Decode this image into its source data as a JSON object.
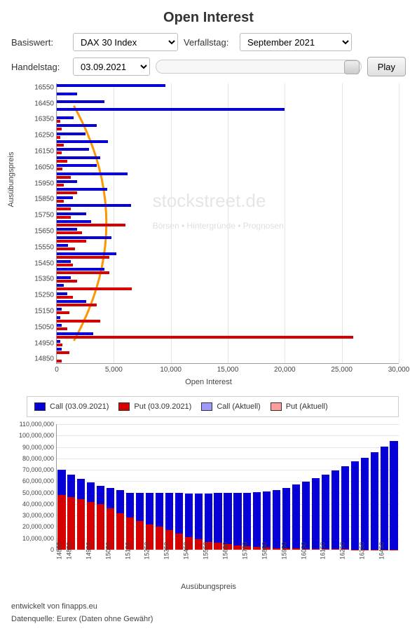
{
  "title": "Open Interest",
  "controls": {
    "basiswert_label": "Basiswert:",
    "basiswert_value": "DAX 30 Index",
    "verfallstag_label": "Verfallstag:",
    "verfallstag_value": "September 2021",
    "handelstag_label": "Handelstag:",
    "handelstag_value": "03.09.2021",
    "play_label": "Play"
  },
  "watermark": {
    "main": "stockstreet.de",
    "sub": "Börsen • Hintergründe • Prognosen"
  },
  "colors": {
    "call": "#0600d6",
    "put": "#d60000",
    "call_aktuell": "#9d99ff",
    "put_aktuell": "#ff9d9d",
    "arc": "#ff9500",
    "grid": "#e5e5e5"
  },
  "hchart": {
    "y_axis_title": "Ausübungspreis",
    "x_axis_title": "Open Interest",
    "x_max": 30000,
    "x_ticks": [
      0,
      5000,
      10000,
      15000,
      20000,
      25000,
      30000
    ],
    "x_tick_labels": [
      "0",
      "5,000",
      "10,000",
      "15,000",
      "20,000",
      "25,000",
      "30,000"
    ],
    "y_tick_step": 100,
    "rows": [
      {
        "strike": 16550,
        "call": 9500,
        "put": 0
      },
      {
        "strike": 16500,
        "call": 1800,
        "put": 0
      },
      {
        "strike": 16450,
        "call": 4200,
        "put": 0
      },
      {
        "strike": 16400,
        "call": 20000,
        "put": 0
      },
      {
        "strike": 16350,
        "call": 1500,
        "put": 300
      },
      {
        "strike": 16300,
        "call": 3500,
        "put": 400
      },
      {
        "strike": 16250,
        "call": 2500,
        "put": 300
      },
      {
        "strike": 16200,
        "call": 4500,
        "put": 600
      },
      {
        "strike": 16150,
        "call": 2800,
        "put": 400
      },
      {
        "strike": 16100,
        "call": 3800,
        "put": 900
      },
      {
        "strike": 16050,
        "call": 3500,
        "put": 500
      },
      {
        "strike": 16000,
        "call": 6200,
        "put": 1200
      },
      {
        "strike": 15950,
        "call": 1800,
        "put": 600
      },
      {
        "strike": 15900,
        "call": 4400,
        "put": 1800
      },
      {
        "strike": 15850,
        "call": 1400,
        "put": 600
      },
      {
        "strike": 15800,
        "call": 6500,
        "put": 1200
      },
      {
        "strike": 15750,
        "call": 2600,
        "put": 1200
      },
      {
        "strike": 15700,
        "call": 3000,
        "put": 6000
      },
      {
        "strike": 15650,
        "call": 1800,
        "put": 2200
      },
      {
        "strike": 15600,
        "call": 4800,
        "put": 2600
      },
      {
        "strike": 15550,
        "call": 1000,
        "put": 1600
      },
      {
        "strike": 15500,
        "call": 5200,
        "put": 4600
      },
      {
        "strike": 15450,
        "call": 1200,
        "put": 1400
      },
      {
        "strike": 15400,
        "call": 4200,
        "put": 4600
      },
      {
        "strike": 15350,
        "call": 1200,
        "put": 1800
      },
      {
        "strike": 15300,
        "call": 600,
        "put": 6600
      },
      {
        "strike": 15250,
        "call": 900,
        "put": 1400
      },
      {
        "strike": 15200,
        "call": 2600,
        "put": 3500
      },
      {
        "strike": 15150,
        "call": 400,
        "put": 1100
      },
      {
        "strike": 15100,
        "call": 300,
        "put": 3800
      },
      {
        "strike": 15050,
        "call": 400,
        "put": 900
      },
      {
        "strike": 15000,
        "call": 3200,
        "put": 26000
      },
      {
        "strike": 14950,
        "call": 300,
        "put": 500
      },
      {
        "strike": 14900,
        "call": 400,
        "put": 1100
      },
      {
        "strike": 14850,
        "call": 0,
        "put": 400
      }
    ],
    "arc": {
      "cx_pct": 5,
      "top_pct": 8,
      "bot_pct": 92,
      "right_pct": 24
    }
  },
  "legend": {
    "items": [
      {
        "label": "Call (03.09.2021)",
        "color": "#0600d6"
      },
      {
        "label": "Put (03.09.2021)",
        "color": "#d60000"
      },
      {
        "label": "Call (Aktuell)",
        "color": "#9d99ff"
      },
      {
        "label": "Put (Aktuell)",
        "color": "#ff9d9d"
      }
    ]
  },
  "stackchart": {
    "y_max": 110000000,
    "y_ticks": [
      0,
      10000000,
      20000000,
      30000000,
      40000000,
      50000000,
      60000000,
      70000000,
      80000000,
      90000000,
      100000000,
      110000000
    ],
    "y_tick_labels": [
      "0",
      "10,000,000",
      "20,000,000",
      "30,000,000",
      "40,000,000",
      "50,000,000",
      "60,000,000",
      "70,000,000",
      "80,000,000",
      "90,000,000",
      "100,000,000",
      "110,000,000"
    ],
    "x_axis_title": "Ausübungspreis",
    "bars": [
      {
        "strike": 14800,
        "put": 48000000,
        "call": 22000000
      },
      {
        "strike": 14850,
        "put": 46000000,
        "call": 20000000
      },
      {
        "strike": 14900,
        "put": 44000000,
        "call": 18000000
      },
      {
        "strike": 14950,
        "put": 42000000,
        "call": 17000000
      },
      {
        "strike": 15000,
        "put": 40000000,
        "call": 16000000
      },
      {
        "strike": 15050,
        "put": 36000000,
        "call": 18000000
      },
      {
        "strike": 15100,
        "put": 32000000,
        "call": 20000000
      },
      {
        "strike": 15150,
        "put": 28000000,
        "call": 22000000
      },
      {
        "strike": 15200,
        "put": 25000000,
        "call": 25000000
      },
      {
        "strike": 15250,
        "put": 22000000,
        "call": 28000000
      },
      {
        "strike": 15300,
        "put": 20000000,
        "call": 30000000
      },
      {
        "strike": 15350,
        "put": 17000000,
        "call": 33000000
      },
      {
        "strike": 15400,
        "put": 14000000,
        "call": 36000000
      },
      {
        "strike": 15450,
        "put": 11000000,
        "call": 38000000
      },
      {
        "strike": 15500,
        "put": 9000000,
        "call": 40000000
      },
      {
        "strike": 15550,
        "put": 7000000,
        "call": 42000000
      },
      {
        "strike": 15600,
        "put": 6000000,
        "call": 44000000
      },
      {
        "strike": 15650,
        "put": 5000000,
        "call": 45000000
      },
      {
        "strike": 15700,
        "put": 4000000,
        "call": 46000000
      },
      {
        "strike": 15750,
        "put": 3000000,
        "call": 47000000
      },
      {
        "strike": 15800,
        "put": 2500000,
        "call": 48000000
      },
      {
        "strike": 15850,
        "put": 2000000,
        "call": 49000000
      },
      {
        "strike": 15900,
        "put": 1500000,
        "call": 51000000
      },
      {
        "strike": 15950,
        "put": 1200000,
        "call": 53000000
      },
      {
        "strike": 16000,
        "put": 1000000,
        "call": 56000000
      },
      {
        "strike": 16050,
        "put": 800000,
        "call": 59000000
      },
      {
        "strike": 16100,
        "put": 700000,
        "call": 62000000
      },
      {
        "strike": 16150,
        "put": 600000,
        "call": 65000000
      },
      {
        "strike": 16200,
        "put": 500000,
        "call": 69000000
      },
      {
        "strike": 16250,
        "put": 400000,
        "call": 73000000
      },
      {
        "strike": 16300,
        "put": 300000,
        "call": 77000000
      },
      {
        "strike": 16350,
        "put": 300000,
        "call": 80000000
      },
      {
        "strike": 16400,
        "put": 200000,
        "call": 85000000
      },
      {
        "strike": 16450,
        "put": 200000,
        "call": 90000000
      },
      {
        "strike": 16500,
        "put": 100000,
        "call": 95000000
      }
    ]
  },
  "footer": {
    "line1": "entwickelt von finapps.eu",
    "line2": "Datenquelle: Eurex (Daten ohne Gewähr)"
  }
}
